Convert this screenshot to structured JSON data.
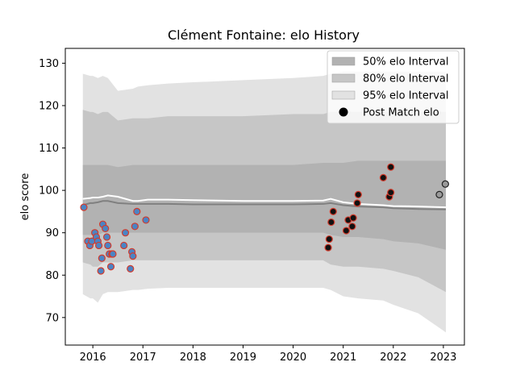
{
  "chart_data": {
    "type": "scatter",
    "title": "Clément Fontaine: elo History",
    "xlabel": "",
    "ylabel": "elo score",
    "xlim": [
      2015.45,
      2023.42
    ],
    "ylim": [
      63.5,
      133.5
    ],
    "x_ticks": [
      "2016",
      "2017",
      "2018",
      "2019",
      "2020",
      "2021",
      "2022",
      "2023"
    ],
    "y_ticks": [
      "70",
      "80",
      "90",
      "100",
      "110",
      "120",
      "130"
    ],
    "legend": {
      "position": "top-right",
      "entries": [
        {
          "label": "50% elo Interval",
          "color": "#b2b2b2",
          "kind": "patch"
        },
        {
          "label": "80% elo Interval",
          "color": "#c6c6c6",
          "kind": "patch"
        },
        {
          "label": "95% elo Interval",
          "color": "#e2e2e2",
          "kind": "patch"
        },
        {
          "label": "Post Match elo",
          "color": "#000000",
          "kind": "marker"
        }
      ]
    },
    "band_x": [
      2015.8,
      2015.95,
      2016.0,
      2016.1,
      2016.2,
      2016.3,
      2016.5,
      2016.8,
      2016.9,
      2017.1,
      2017.5,
      2018.0,
      2019.0,
      2020.0,
      2020.6,
      2020.75,
      2021.0,
      2021.3,
      2021.8,
      2022.0,
      2022.5,
      2023.05
    ],
    "series": [
      {
        "name": "95% elo Interval",
        "kind": "band",
        "color": "#e2e2e2",
        "lower": [
          75.5,
          74.5,
          74.5,
          73.5,
          75.5,
          76.0,
          76.0,
          76.5,
          76.5,
          76.8,
          77.0,
          77.0,
          77.0,
          77.0,
          77.0,
          76.5,
          75.0,
          74.5,
          74.0,
          73.0,
          71.0,
          66.5
        ],
        "upper": [
          127.5,
          127.0,
          127.0,
          126.5,
          127.0,
          126.5,
          123.5,
          124.0,
          124.5,
          124.8,
          125.2,
          125.5,
          126.0,
          126.5,
          127.0,
          127.5,
          128.0,
          128.0,
          128.0,
          128.0,
          128.0,
          128.0
        ]
      },
      {
        "name": "80% elo Interval",
        "kind": "band",
        "color": "#c6c6c6",
        "lower": [
          83.0,
          82.5,
          82.0,
          82.0,
          83.0,
          83.0,
          83.0,
          83.5,
          83.5,
          83.5,
          83.5,
          83.5,
          83.5,
          83.5,
          83.5,
          82.5,
          82.0,
          82.0,
          81.5,
          81.0,
          79.5,
          76.0
        ],
        "upper": [
          119.0,
          118.5,
          118.5,
          118.0,
          118.5,
          118.5,
          116.5,
          117.0,
          117.0,
          117.0,
          117.5,
          117.5,
          117.5,
          118.0,
          118.0,
          118.5,
          118.5,
          118.5,
          118.5,
          118.5,
          118.5,
          118.5
        ]
      },
      {
        "name": "50% elo Interval",
        "kind": "band",
        "color": "#b2b2b2",
        "lower": [
          89.5,
          89.5,
          89.5,
          89.5,
          90.0,
          90.0,
          90.0,
          90.0,
          90.0,
          90.0,
          90.0,
          90.0,
          90.0,
          90.0,
          90.0,
          89.5,
          89.0,
          89.0,
          88.5,
          88.0,
          87.5,
          86.0
        ],
        "upper": [
          106.0,
          106.0,
          106.0,
          106.0,
          106.0,
          106.0,
          105.5,
          106.0,
          106.0,
          106.0,
          106.0,
          106.0,
          106.0,
          106.0,
          106.5,
          106.5,
          106.5,
          107.0,
          107.0,
          107.0,
          107.0,
          107.0
        ]
      },
      {
        "name": "mean",
        "kind": "line",
        "color": "#808080",
        "values": [
          96.5,
          97.0,
          97.0,
          97.2,
          97.5,
          97.5,
          97.0,
          96.8,
          96.8,
          96.8,
          96.8,
          96.7,
          96.7,
          96.7,
          96.8,
          97.0,
          96.5,
          96.2,
          96.0,
          95.8,
          95.6,
          95.5
        ]
      },
      {
        "name": "upper line",
        "kind": "line",
        "color": "#ffffff",
        "values": [
          98.0,
          98.2,
          98.3,
          98.3,
          98.5,
          98.8,
          98.5,
          97.5,
          97.5,
          97.8,
          97.8,
          97.7,
          97.5,
          97.5,
          97.6,
          98.0,
          97.2,
          96.8,
          96.5,
          96.3,
          96.2,
          96.0
        ]
      },
      {
        "name": "Post Match elo",
        "kind": "points",
        "fill": "#4b84c4",
        "edge": "#d33b2c",
        "x": [
          2015.82,
          2015.9,
          2015.94,
          2015.98,
          2016.04,
          2016.07,
          2016.1,
          2016.12,
          2016.16,
          2016.18,
          2016.2,
          2016.25,
          2016.28,
          2016.3,
          2016.33,
          2016.36,
          2016.38,
          2016.4,
          2016.62,
          2016.65,
          2016.75,
          2016.78,
          2016.8,
          2016.84,
          2016.88,
          2017.06
        ],
        "y": [
          96,
          88,
          87,
          88,
          90,
          89,
          88,
          87,
          81,
          84,
          92,
          91,
          89,
          87,
          85,
          82,
          85,
          85,
          87,
          90,
          81.5,
          85.5,
          84.5,
          91.5,
          95,
          93
        ]
      },
      {
        "name": "Post Match elo",
        "kind": "points",
        "fill": "#111111",
        "edge": "#d33b2c",
        "x": [
          2020.7,
          2020.72,
          2020.76,
          2020.8,
          2021.06,
          2021.1,
          2021.18,
          2021.2,
          2021.28,
          2021.3,
          2021.8,
          2021.92,
          2021.95,
          2021.95
        ],
        "y": [
          86.5,
          88.5,
          92.5,
          95,
          90.5,
          93,
          91.5,
          93.5,
          97,
          99,
          103,
          98.5,
          99.5,
          105.5
        ]
      },
      {
        "name": "Post Match elo",
        "kind": "points",
        "fill": "#9a9a9a",
        "edge": "#222222",
        "x": [
          2022.92,
          2023.04
        ],
        "y": [
          99,
          101.5
        ]
      }
    ]
  }
}
